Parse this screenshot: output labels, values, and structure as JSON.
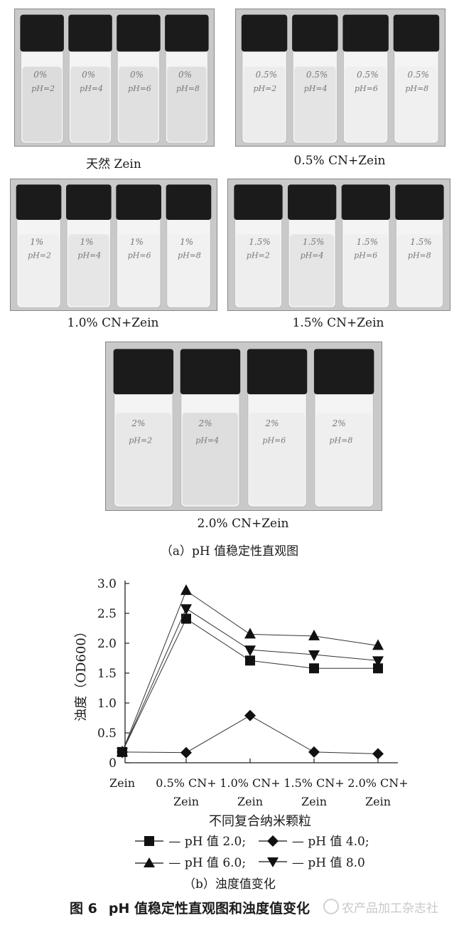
{
  "photos": [
    {
      "label": "天然 Zein",
      "vial_labels": [
        [
          "0%",
          "pH=2"
        ],
        [
          "0%",
          "pH=4"
        ],
        [
          "0%",
          "pH=6"
        ],
        [
          "0%",
          "pH=8"
        ]
      ]
    },
    {
      "label": "0.5% CN+Zein",
      "vial_labels": [
        [
          "0.5%",
          "pH=2"
        ],
        [
          "0.5%",
          "pH=4"
        ],
        [
          "0.5%",
          "pH=6"
        ],
        [
          "0.5%",
          "pH=8"
        ]
      ]
    },
    {
      "label": "1.0% CN+Zein",
      "vial_labels": [
        [
          "1%",
          "pH=2"
        ],
        [
          "1%",
          "pH=4"
        ],
        [
          "1%",
          "pH=6"
        ],
        [
          "1%",
          "pH=8"
        ]
      ]
    },
    {
      "label": "1.5% CN+Zein",
      "vial_labels": [
        [
          "1.5%",
          "pH=2"
        ],
        [
          "1.5%",
          "pH=4"
        ],
        [
          "1.5%",
          "pH=6"
        ],
        [
          "1.5%",
          "pH=8"
        ]
      ]
    },
    {
      "label": "2.0% CN+Zein",
      "vial_labels": [
        [
          "2%",
          "pH=2"
        ],
        [
          "2%",
          "pH=4"
        ],
        [
          "2%",
          "pH=6"
        ],
        [
          "2%",
          "pH=8"
        ]
      ]
    }
  ],
  "caption_a": "（a）pH 值稳定性直观图",
  "caption_b": "（b）浊度值变化",
  "figure_number": "图 6",
  "figure_title": "pH 值稳定性直观图和浊度值变化",
  "watermark": "农产品加工杂志社",
  "colors": {
    "line": "#333333",
    "marker": "#111111",
    "vial_cap": "#1b1b1b",
    "liquid": "#e6e6e6"
  },
  "chart_data": {
    "type": "line",
    "categories": [
      [
        "Zein"
      ],
      [
        "0.5% CN+",
        "Zein"
      ],
      [
        "1.0% CN+",
        "Zein"
      ],
      [
        "1.5% CN+",
        "Zein"
      ],
      [
        "2.0% CN+",
        "Zein"
      ]
    ],
    "xlabel": "不同复合纳米颗粒",
    "ylabel": "浊度（OD600）",
    "ylim": [
      0,
      3.0
    ],
    "yticks": [
      "0",
      "0.5",
      "1.0",
      "1.5",
      "2.0",
      "2.5",
      "3.0"
    ],
    "series": [
      {
        "name": "pH 值 2.0;",
        "marker": "square",
        "values": [
          0.18,
          2.41,
          1.71,
          1.58,
          1.58
        ]
      },
      {
        "name": "pH 值 4.0;",
        "marker": "diamond",
        "values": [
          0.18,
          0.17,
          0.79,
          0.18,
          0.15
        ]
      },
      {
        "name": "pH 值 6.0;",
        "marker": "triangle-up",
        "values": [
          0.18,
          2.88,
          2.15,
          2.12,
          1.96
        ]
      },
      {
        "name": "pH 值 8.0",
        "marker": "triangle-down",
        "values": [
          0.18,
          2.58,
          1.89,
          1.81,
          1.71
        ]
      }
    ]
  }
}
